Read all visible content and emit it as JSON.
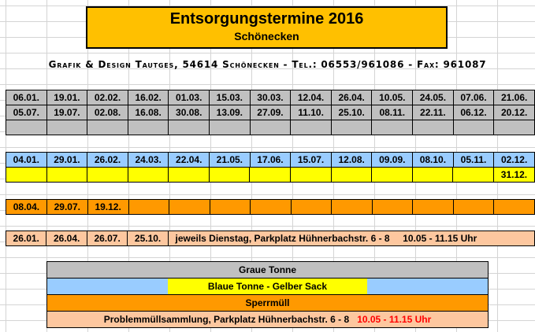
{
  "title": "Entsorgungstermine 2016",
  "subtitle": "Schönecken",
  "credit": "Grafik & Design Tautges, 54614 Schönecken - Tel.: 06553/961086 - Fax: 961087",
  "graue_tonne": {
    "row1": [
      "06.01.",
      "19.01.",
      "02.02.",
      "16.02.",
      "01.03.",
      "15.03.",
      "30.03.",
      "12.04.",
      "26.04.",
      "10.05.",
      "24.05.",
      "07.06.",
      "21.06."
    ],
    "row2": [
      "05.07.",
      "19.07.",
      "02.08.",
      "16.08.",
      "30.08.",
      "13.09.",
      "27.09.",
      "11.10.",
      "25.10.",
      "08.11.",
      "22.11.",
      "06.12.",
      "20.12."
    ]
  },
  "blaue_tonne": [
    "04.01.",
    "29.01.",
    "26.02.",
    "24.03.",
    "22.04.",
    "21.05.",
    "17.06.",
    "15.07.",
    "12.08.",
    "09.09.",
    "08.10.",
    "05.11.",
    "02.12."
  ],
  "gelber_sack": [
    "31.12."
  ],
  "sperrmuell": [
    "08.04.",
    "29.07.",
    "19.12."
  ],
  "problemmuell": {
    "dates": [
      "26.01.",
      "26.04.",
      "26.07.",
      "25.10."
    ],
    "note": "jeweils Dienstag, Parkplatz Hühnerbachstr. 6 - 8",
    "time": "10.05 - 11.15 Uhr"
  },
  "legend": {
    "graue_tonne": "Graue Tonne",
    "blaue_gelb": "Blaue Tonne   -   Gelber Sack",
    "sperrmuell": "Sperrmüll",
    "problem_text": "Problemmüllsammlung,  Parkplatz Hühnerbachstr. 6 - 8",
    "problem_time": "10.05 - 11.15 Uhr"
  },
  "colors": {
    "title_bg": "#ffc000",
    "graue_tonne": "#c0c0c0",
    "blaue_tonne": "#99ccff",
    "gelber_sack": "#ffff00",
    "sperrmuell": "#ff9900",
    "problemmuell": "#fdc79f",
    "time_highlight": "#ff0000"
  }
}
